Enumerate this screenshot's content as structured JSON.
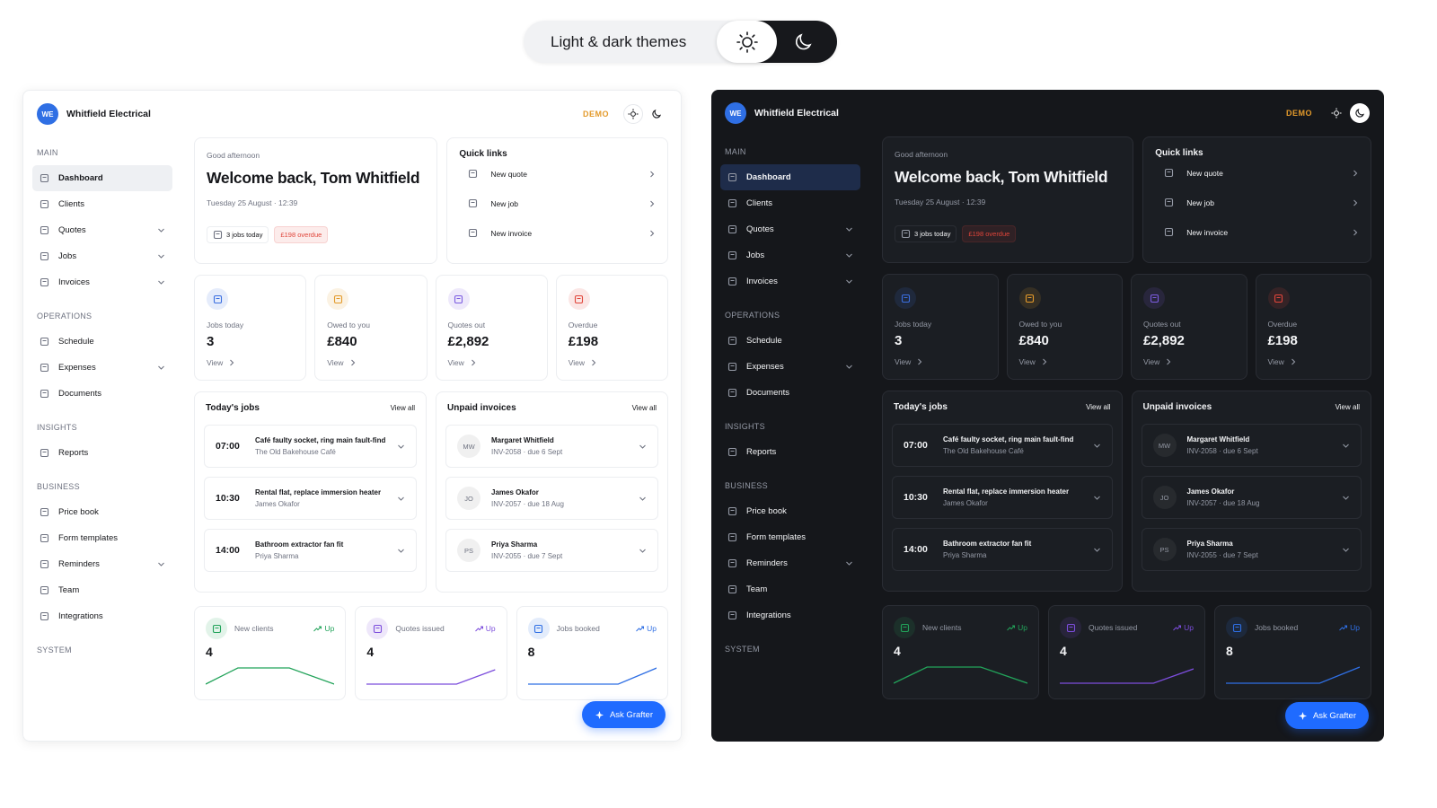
{
  "banner": {
    "title": "Light & dark themes"
  },
  "app": {
    "brand": {
      "initials": "WE",
      "name": "Whitfield Electrical"
    },
    "badge": "DEMO",
    "nav": [
      {
        "section": "MAIN",
        "items": [
          {
            "label": "Dashboard",
            "active": true
          },
          {
            "label": "Clients"
          },
          {
            "label": "Quotes",
            "expand": true
          },
          {
            "label": "Jobs",
            "expand": true
          },
          {
            "label": "Invoices",
            "expand": true
          }
        ]
      },
      {
        "section": "OPERATIONS",
        "items": [
          {
            "label": "Schedule"
          },
          {
            "label": "Expenses",
            "expand": true
          },
          {
            "label": "Documents"
          }
        ]
      },
      {
        "section": "INSIGHTS",
        "items": [
          {
            "label": "Reports"
          }
        ]
      },
      {
        "section": "BUSINESS",
        "items": [
          {
            "label": "Price book"
          },
          {
            "label": "Form templates"
          },
          {
            "label": "Reminders",
            "expand": true
          },
          {
            "label": "Team"
          },
          {
            "label": "Integrations"
          }
        ]
      },
      {
        "section": "SYSTEM",
        "items": []
      }
    ],
    "welcome": {
      "greeting": "Good afternoon",
      "title": "Welcome back, Tom Whitfield",
      "date": "Tuesday 25 August · 12:39",
      "jobs_chip": "3 jobs today",
      "overdue_chip": "£198 overdue"
    },
    "quick_links": {
      "title": "Quick links",
      "items": [
        "New quote",
        "New job",
        "New invoice"
      ]
    },
    "stats": [
      {
        "label": "Jobs today",
        "value": "3",
        "link": "View",
        "color": "#3b6fe0"
      },
      {
        "label": "Owed to you",
        "value": "£840",
        "link": "View",
        "color": "#e39a2b"
      },
      {
        "label": "Quotes out",
        "value": "£2,892",
        "link": "View",
        "color": "#7c5ce0"
      },
      {
        "label": "Overdue",
        "value": "£198",
        "link": "View",
        "color": "#e0453a"
      }
    ],
    "jobs": {
      "title": "Today's jobs",
      "view_all": "View all",
      "items": [
        {
          "time": "07:00",
          "title": "Café faulty socket, ring main fault-find",
          "subtitle": "The Old Bakehouse Café"
        },
        {
          "time": "10:30",
          "title": "Rental flat, replace immersion heater",
          "subtitle": "James Okafor"
        },
        {
          "time": "14:00",
          "title": "Bathroom extractor fan fit",
          "subtitle": "Priya Sharma"
        }
      ]
    },
    "invoices": {
      "title": "Unpaid invoices",
      "view_all": "View all",
      "items": [
        {
          "initials": "MW",
          "name": "Margaret Whitfield",
          "ref": "INV-2058 · due 6 Sept"
        },
        {
          "initials": "JO",
          "name": "James Okafor",
          "ref": "INV-2057 · due 18 Aug"
        },
        {
          "initials": "PS",
          "name": "Priya Sharma",
          "ref": "INV-2055 · due 7 Sept"
        }
      ]
    },
    "trends": [
      {
        "label": "New clients",
        "trend": "Up",
        "value": "4",
        "color": "#22a35a"
      },
      {
        "label": "Quotes issued",
        "trend": "Up",
        "value": "4",
        "color": "#7c4ddc"
      },
      {
        "label": "Jobs booked",
        "trend": "Up",
        "value": "8",
        "color": "#2f6fe4"
      }
    ],
    "ask": "Ask Grafter"
  }
}
